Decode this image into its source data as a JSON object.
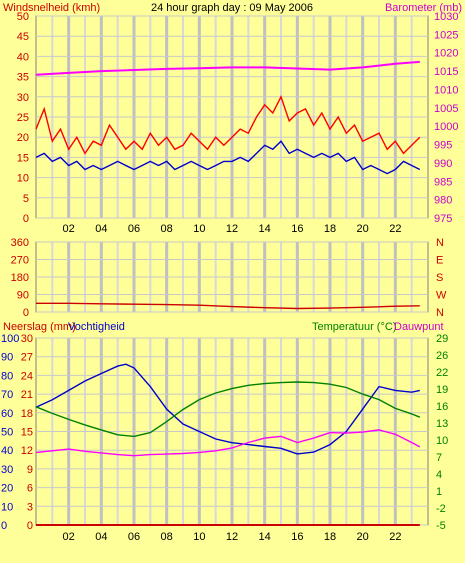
{
  "chart_data": [
    {
      "type": "line",
      "title": "24 hour graph day : 09 May 2006",
      "ylabel_left": "Windsnelheid (kmh)",
      "ylabel_right": "Barometer (mb)",
      "x_ticks": [
        "02",
        "04",
        "06",
        "08",
        "10",
        "12",
        "14",
        "16",
        "18",
        "20",
        "22"
      ],
      "xlim": [
        0,
        24
      ],
      "ylim_left": [
        0,
        50
      ],
      "ylim_right": [
        975,
        1030
      ],
      "yticks_left": [
        "0",
        "5",
        "10",
        "15",
        "20",
        "25",
        "30",
        "35",
        "40",
        "45",
        "50"
      ],
      "yticks_right": [
        "975",
        "980",
        "985",
        "990",
        "995",
        "1000",
        "1005",
        "1010",
        "1015",
        "1020",
        "1025",
        "1030"
      ],
      "series": [
        {
          "name": "Windsnelheid gust",
          "axis": "left",
          "color": "#ff0000",
          "x": [
            0,
            0.5,
            1,
            1.5,
            2,
            2.5,
            3,
            3.5,
            4,
            4.5,
            5,
            5.5,
            6,
            6.5,
            7,
            7.5,
            8,
            8.5,
            9,
            9.5,
            10,
            10.5,
            11,
            11.5,
            12,
            12.5,
            13,
            13.5,
            14,
            14.5,
            15,
            15.5,
            16,
            16.5,
            17,
            17.5,
            18,
            18.5,
            19,
            19.5,
            20,
            20.5,
            21,
            21.5,
            22,
            22.5,
            23,
            23.5
          ],
          "y": [
            22,
            27,
            19,
            22,
            17,
            20,
            16,
            19,
            18,
            23,
            20,
            17,
            19,
            17,
            21,
            18,
            20,
            17,
            18,
            21,
            19,
            17,
            20,
            18,
            20,
            22,
            21,
            25,
            28,
            26,
            30,
            24,
            26,
            27,
            23,
            26,
            22,
            25,
            21,
            23,
            19,
            20,
            21,
            17,
            19,
            16,
            18,
            20
          ]
        },
        {
          "name": "Windsnelheid",
          "axis": "left",
          "color": "#0000cc",
          "x": [
            0,
            0.5,
            1,
            1.5,
            2,
            2.5,
            3,
            3.5,
            4,
            4.5,
            5,
            5.5,
            6,
            6.5,
            7,
            7.5,
            8,
            8.5,
            9,
            9.5,
            10,
            10.5,
            11,
            11.5,
            12,
            12.5,
            13,
            13.5,
            14,
            14.5,
            15,
            15.5,
            16,
            16.5,
            17,
            17.5,
            18,
            18.5,
            19,
            19.5,
            20,
            20.5,
            21,
            21.5,
            22,
            22.5,
            23,
            23.5
          ],
          "y": [
            15,
            16,
            14,
            15,
            13,
            14,
            12,
            13,
            12,
            13,
            14,
            13,
            12,
            13,
            14,
            13,
            14,
            12,
            13,
            14,
            13,
            12,
            13,
            14,
            14,
            15,
            14,
            16,
            18,
            17,
            19,
            16,
            17,
            16,
            15,
            16,
            15,
            16,
            14,
            15,
            12,
            13,
            12,
            11,
            12,
            14,
            13,
            12
          ]
        },
        {
          "name": "Barometer",
          "axis": "right",
          "color": "#ff00ff",
          "x": [
            0,
            2,
            4,
            6,
            8,
            10,
            12,
            14,
            16,
            18,
            20,
            22,
            23.5
          ],
          "y": [
            1014,
            1014.5,
            1015,
            1015.3,
            1015.6,
            1015.8,
            1016,
            1016,
            1015.7,
            1015.4,
            1016,
            1017,
            1017.5
          ]
        }
      ]
    },
    {
      "type": "line",
      "ylabel_right_letters": [
        "N",
        "W",
        "S",
        "E",
        "N"
      ],
      "x_ticks": [
        "02",
        "04",
        "06",
        "08",
        "10",
        "12",
        "14",
        "16",
        "18",
        "20",
        "22"
      ],
      "xlim": [
        0,
        24
      ],
      "ylim": [
        0,
        360
      ],
      "yticks": [
        "0",
        "90",
        "180",
        "270",
        "360"
      ],
      "series": [
        {
          "name": "Windrichting",
          "color": "#cc0000",
          "x": [
            0,
            2,
            4,
            6,
            8,
            10,
            12,
            14,
            16,
            18,
            20,
            22,
            23.5
          ],
          "y": [
            45,
            45,
            42,
            40,
            38,
            35,
            28,
            22,
            18,
            20,
            24,
            30,
            32
          ]
        }
      ]
    },
    {
      "type": "line",
      "ylabel_left": "Neerslag (mm)",
      "ylabel_left2": "Vochtigheid",
      "ylabel_right": "Temperatuur (°C)",
      "ylabel_right2": "Dauwpunt",
      "x_ticks": [
        "02",
        "04",
        "06",
        "08",
        "10",
        "12",
        "14",
        "16",
        "18",
        "20",
        "22"
      ],
      "xlim": [
        0,
        24
      ],
      "ylim_left": [
        0,
        100
      ],
      "ylim_left_rain": [
        0,
        30
      ],
      "ylim_right": [
        -5,
        29
      ],
      "yticks_left": [
        "0",
        "10",
        "20",
        "30",
        "40",
        "50",
        "60",
        "70",
        "80",
        "90",
        "100"
      ],
      "yticks_left_rain": [
        "0",
        "3",
        "6",
        "9",
        "12",
        "15",
        "18",
        "21",
        "24",
        "27",
        "30"
      ],
      "yticks_right": [
        "-5",
        "-2",
        "1",
        "4",
        "7",
        "10",
        "13",
        "16",
        "19",
        "22",
        "26",
        "29"
      ],
      "series": [
        {
          "name": "Vochtigheid",
          "axis": "left",
          "color": "#0000cc",
          "x": [
            0,
            1,
            2,
            3,
            4,
            5,
            5.5,
            6,
            7,
            8,
            9,
            10,
            11,
            12,
            13,
            14,
            15,
            16,
            17,
            18,
            19,
            20,
            21,
            22,
            23,
            23.5
          ],
          "y": [
            63,
            67,
            72,
            77,
            81,
            85,
            86,
            84,
            74,
            62,
            54,
            50,
            46,
            44,
            43,
            42,
            41,
            38,
            39,
            43,
            50,
            62,
            74,
            72,
            71,
            72
          ]
        },
        {
          "name": "Temperatuur",
          "axis": "right",
          "color": "#008000",
          "x": [
            0,
            1,
            2,
            3,
            4,
            5,
            6,
            7,
            8,
            9,
            10,
            11,
            12,
            13,
            14,
            15,
            16,
            17,
            18,
            19,
            20,
            21,
            22,
            23,
            23.5
          ],
          "y": [
            16.5,
            15.3,
            14.2,
            13.2,
            12.3,
            11.4,
            11.1,
            11.8,
            13.8,
            16,
            17.8,
            19,
            19.8,
            20.4,
            20.7,
            20.9,
            21,
            20.9,
            20.6,
            20,
            18.8,
            17.8,
            16.2,
            15.2,
            14.6
          ]
        },
        {
          "name": "Dauwpunt",
          "axis": "right",
          "color": "#ff00ff",
          "x": [
            0,
            1,
            2,
            3,
            4,
            5,
            6,
            7,
            8,
            9,
            10,
            11,
            12,
            13,
            14,
            15,
            16,
            17,
            18,
            19,
            20,
            21,
            22,
            23,
            23.5
          ],
          "y": [
            8.2,
            8.5,
            8.8,
            8.4,
            8.1,
            7.8,
            7.6,
            7.8,
            7.9,
            8,
            8.2,
            8.5,
            9,
            10,
            10.8,
            11.1,
            10,
            10.8,
            11.8,
            11.7,
            11.9,
            12.3,
            11.5,
            10,
            9.2
          ]
        },
        {
          "name": "Neerslag",
          "axis": "left_rain",
          "color": "#cc0000",
          "x": [
            0,
            23.5
          ],
          "y": [
            0,
            0
          ]
        }
      ]
    }
  ]
}
